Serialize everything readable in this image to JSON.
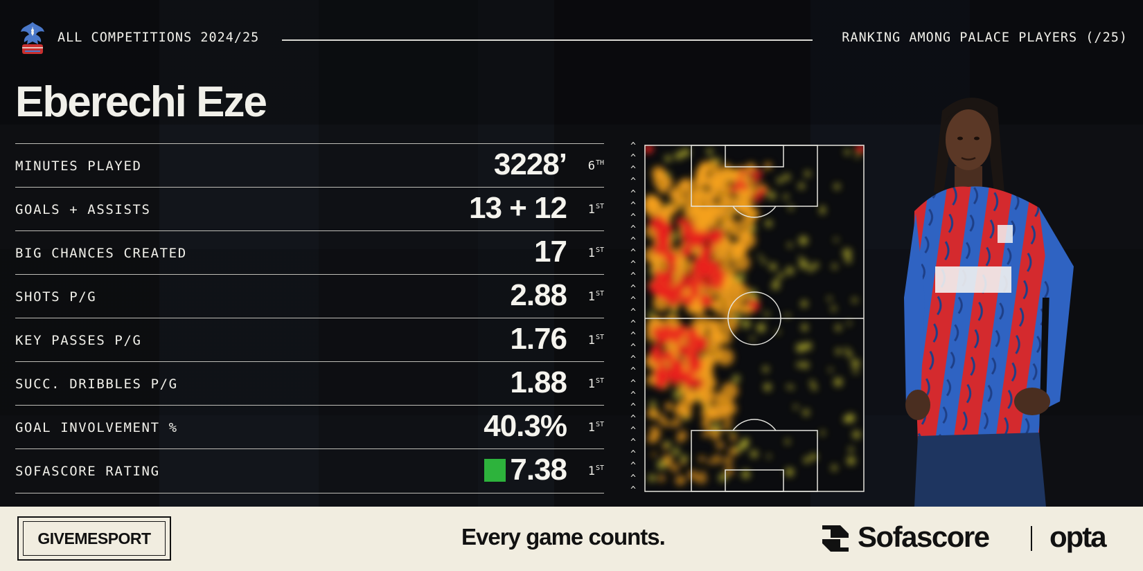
{
  "header": {
    "competition": "ALL COMPETITIONS 2024/25",
    "ranking_note": "RANKING AMONG PALACE PLAYERS (/25)"
  },
  "player": {
    "name": "Eberechi Eze"
  },
  "stats": [
    {
      "label": "MINUTES PLAYED",
      "value": "3228’",
      "rank_num": "6",
      "rank_suffix": "TH"
    },
    {
      "label": "GOALS + ASSISTS",
      "value": "13 + 12",
      "rank_num": "1",
      "rank_suffix": "ST"
    },
    {
      "label": "BIG CHANCES CREATED",
      "value": "17",
      "rank_num": "1",
      "rank_suffix": "ST"
    },
    {
      "label": "SHOTS P/G",
      "value": "2.88",
      "rank_num": "1",
      "rank_suffix": "ST"
    },
    {
      "label": "KEY PASSES P/G",
      "value": "1.76",
      "rank_num": "1",
      "rank_suffix": "ST"
    },
    {
      "label": "SUCC. DRIBBLES P/G",
      "value": "1.88",
      "rank_num": "1",
      "rank_suffix": "ST"
    },
    {
      "label": "GOAL INVOLVEMENT %",
      "value": "40.3%",
      "rank_num": "1",
      "rank_suffix": "ST"
    },
    {
      "label": "SOFASCORE RATING",
      "value": "7.38",
      "rank_num": "1",
      "rank_suffix": "ST",
      "rating_color": "#2db33c"
    }
  ],
  "heatmap": {
    "attack_direction": "up",
    "colors": {
      "hot": "#e8231c",
      "warm": "#f7a21b",
      "cool": "#f4ec3c"
    }
  },
  "footer": {
    "publisher": "GIVEMESPORT",
    "tagline": "Every game counts.",
    "sponsor": "Sofascore",
    "partner": "opta"
  },
  "colors": {
    "background": "#0c0d10",
    "text": "#f1f0ea",
    "footer_bg": "#f1ede0",
    "kit_red": "#d42a2e",
    "kit_blue": "#2f63c2"
  }
}
